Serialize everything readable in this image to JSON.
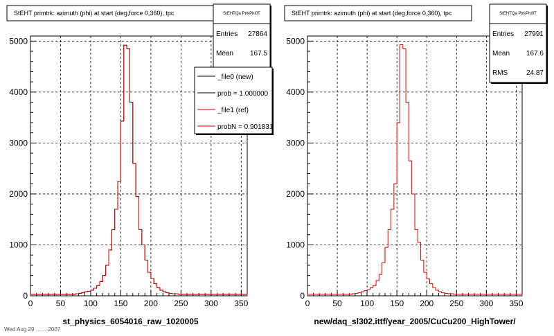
{
  "chart_data": [
    {
      "type": "line",
      "title": "StEHT primtrk: azimuth (phi) at start (deg,force 0,360), tpc",
      "xlabel": "st_physics_6054016_raw_1020005",
      "ylabel": "",
      "xlim": [
        0,
        360
      ],
      "ylim": [
        0,
        5100
      ],
      "xticks": [
        "0",
        "50",
        "100",
        "150",
        "200",
        "250",
        "300",
        "350"
      ],
      "yticks": [
        "0",
        "1000",
        "2000",
        "3000",
        "4000",
        "5000"
      ],
      "grid": true,
      "stats": {
        "title": "StEHTQa PtrkPhi0T",
        "rows": [
          {
            "label": "Entries",
            "value": "27864"
          },
          {
            "label": "Mean",
            "value": "167.5"
          }
        ]
      },
      "legend": {
        "placement": "top-right",
        "entries": [
          {
            "label": "_file0 (new)",
            "color": "#000000"
          },
          {
            "label": "prob = 1.000000",
            "color": "#000000"
          },
          {
            "label": "_file1 (ref)",
            "color": "#cc0000"
          },
          {
            "label": "probN = 0.901831",
            "color": "#cc0000"
          }
        ]
      },
      "bins": {
        "start": 0,
        "width": 5
      },
      "series": [
        {
          "name": "_file0 (new)",
          "color": "#000000",
          "values": [
            30,
            30,
            30,
            30,
            30,
            30,
            30,
            30,
            30,
            30,
            30,
            30,
            30,
            30,
            30,
            40,
            50,
            60,
            80,
            90,
            110,
            150,
            200,
            280,
            400,
            600,
            900,
            1300,
            1700,
            2250,
            3430,
            4920,
            4850,
            3800,
            2600,
            1950,
            1300,
            1000,
            700,
            460,
            340,
            240,
            160,
            110,
            80,
            60,
            50,
            40,
            40,
            30,
            30,
            30,
            30,
            30,
            30,
            30,
            30,
            30,
            30,
            30,
            30,
            30,
            30,
            30,
            30,
            30,
            30,
            30,
            30,
            30,
            30,
            30
          ]
        },
        {
          "name": "_file1 (ref)",
          "color": "#cc0000",
          "values": [
            30,
            30,
            30,
            30,
            30,
            30,
            30,
            30,
            30,
            30,
            30,
            30,
            30,
            30,
            30,
            40,
            50,
            60,
            80,
            90,
            110,
            150,
            200,
            280,
            400,
            600,
            900,
            1300,
            1700,
            2250,
            3430,
            4920,
            4850,
            3800,
            2600,
            1950,
            1300,
            1000,
            700,
            460,
            340,
            240,
            160,
            110,
            80,
            60,
            50,
            40,
            40,
            30,
            30,
            30,
            30,
            30,
            30,
            30,
            30,
            30,
            30,
            30,
            30,
            30,
            30,
            30,
            30,
            30,
            30,
            30,
            30,
            30,
            30,
            30
          ]
        }
      ]
    },
    {
      "type": "line",
      "title": "StEHT primtrk: azimuth (phi) at start (deg,force 0,360), tpc",
      "xlabel": "new/daq_sl302.ittf/year_2005/CuCu200_HighTower/",
      "ylabel": "",
      "xlim": [
        0,
        360
      ],
      "ylim": [
        0,
        5100
      ],
      "xticks": [
        "0",
        "50",
        "100",
        "150",
        "200",
        "250",
        "300",
        "350"
      ],
      "yticks": [
        "0",
        "1000",
        "2000",
        "3000",
        "4000",
        "5000"
      ],
      "grid": true,
      "stats": {
        "title": "StEHTQa PtrkPhi0T",
        "rows": [
          {
            "label": "Entries",
            "value": "27991"
          },
          {
            "label": "Mean",
            "value": "167.6"
          },
          {
            "label": "RMS",
            "value": "24.87"
          }
        ]
      },
      "bins": {
        "start": 0,
        "width": 5
      },
      "series": [
        {
          "name": "",
          "color": "#cc0000",
          "values": [
            30,
            30,
            30,
            30,
            30,
            30,
            30,
            30,
            30,
            30,
            30,
            30,
            30,
            30,
            30,
            40,
            50,
            60,
            80,
            100,
            120,
            160,
            200,
            300,
            420,
            650,
            950,
            1300,
            1700,
            2200,
            3400,
            4930,
            4850,
            3800,
            2650,
            2000,
            1300,
            1050,
            700,
            460,
            330,
            240,
            160,
            110,
            80,
            60,
            50,
            40,
            40,
            30,
            30,
            30,
            30,
            30,
            30,
            30,
            30,
            30,
            30,
            30,
            30,
            30,
            30,
            30,
            30,
            30,
            30,
            30,
            30,
            30,
            30,
            30
          ]
        }
      ]
    }
  ],
  "footer": "Wed Aug 29 ... ... 2007"
}
